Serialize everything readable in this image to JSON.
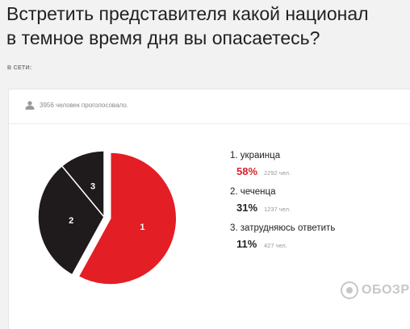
{
  "question": {
    "line1": "Встретить представителя какой национал",
    "line2": "в темное время дня вы опасаетесь?"
  },
  "online_label": "В СЕТИ:",
  "poll": {
    "voters_text": "3956 человек проголосовало."
  },
  "watermark_text": "ОБОЗРЕ",
  "colors": {
    "red": "#e31e24",
    "dark": "#1f1a1b",
    "highlight": "#d8232a"
  },
  "chart_data": {
    "type": "pie",
    "categories": [
      "украинца",
      "чеченца",
      "затрудняюсь ответить"
    ],
    "values": [
      58,
      31,
      11
    ],
    "counts": [
      2292,
      1237,
      427
    ],
    "slice_labels": [
      "1",
      "2",
      "3"
    ],
    "legend": [
      {
        "label": "1. украинца",
        "pct": "58%",
        "count": "2292 чел."
      },
      {
        "label": "2. чеченца",
        "pct": "31%",
        "count": "1237 чел."
      },
      {
        "label": "3. затрудняюсь ответить",
        "pct": "11%",
        "count": "427 чел."
      }
    ]
  }
}
